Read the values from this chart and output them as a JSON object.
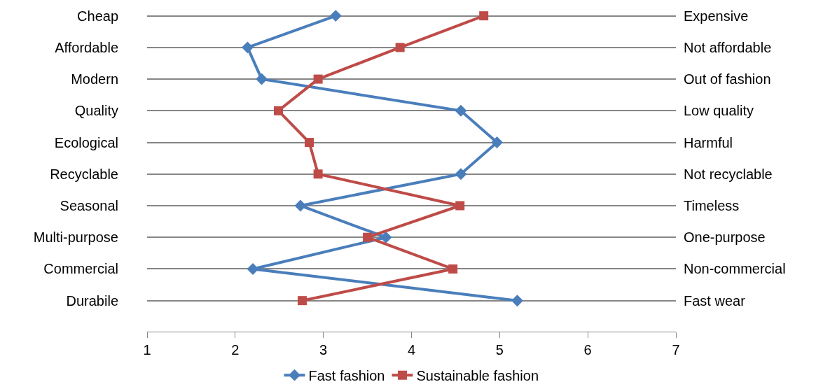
{
  "chart_data": {
    "type": "line",
    "orientation": "horizontal",
    "categories": [
      "Cheap",
      "Affordable",
      "Modern",
      "Quality",
      "Ecological",
      "Recyclable",
      "Seasonal",
      "Multi-purpose",
      "Commercial",
      "Durabile"
    ],
    "y2_categories": [
      "Expensive",
      "Not affordable",
      "Out of fashion",
      "Low quality",
      "Harmful",
      "Not recyclable",
      "Timeless",
      "One-purpose",
      "Non-commercial",
      "Fast wear"
    ],
    "series": [
      {
        "name": "Fast fashion",
        "color": "#4a7ebb",
        "marker": "diamond",
        "values": [
          3.14,
          2.14,
          2.3,
          4.56,
          4.97,
          4.56,
          2.74,
          3.71,
          2.2,
          5.2
        ]
      },
      {
        "name": "Sustainable fashion",
        "color": "#be4b48",
        "marker": "square",
        "values": [
          4.82,
          3.87,
          2.94,
          2.49,
          2.84,
          2.94,
          4.55,
          3.5,
          4.47,
          2.76
        ]
      }
    ],
    "xlim": [
      1,
      7
    ],
    "xticks": [
      1,
      2,
      3,
      4,
      5,
      6,
      7
    ],
    "grid": "y",
    "legend": "bottom",
    "line_style": "solid"
  }
}
